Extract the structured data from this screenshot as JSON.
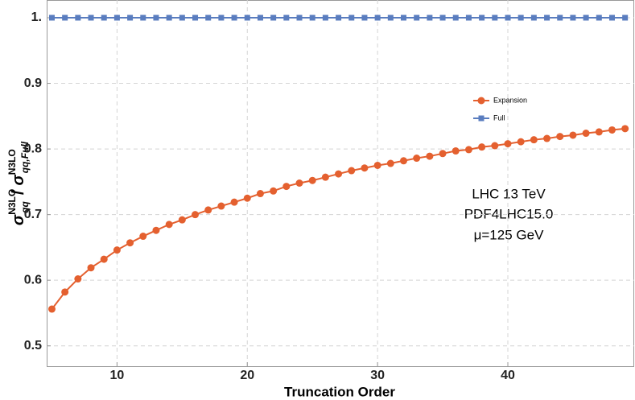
{
  "chart_data": {
    "type": "line",
    "xlabel": "Truncation Order",
    "ylabel": {
      "symbol": "σ",
      "num_sup": "N3LO",
      "num_sub": "qq",
      "slash": "/",
      "den_sup": "N3LO",
      "den_sub": "qq,Full"
    },
    "annotation": [
      "LHC 13 TeV",
      "PDF4LHC15.0",
      "μ=125 GeV"
    ],
    "x": [
      5,
      6,
      7,
      8,
      9,
      10,
      11,
      12,
      13,
      14,
      15,
      16,
      17,
      18,
      19,
      20,
      21,
      22,
      23,
      24,
      25,
      26,
      27,
      28,
      29,
      30,
      31,
      32,
      33,
      34,
      35,
      36,
      37,
      38,
      39,
      40,
      41,
      42,
      43,
      44,
      45,
      46,
      47,
      48,
      49
    ],
    "series": [
      {
        "name": "Expansion",
        "color": "#e4602f",
        "marker": "circle",
        "values": [
          0.556,
          0.582,
          0.602,
          0.619,
          0.632,
          0.646,
          0.657,
          0.667,
          0.676,
          0.685,
          0.692,
          0.7,
          0.707,
          0.713,
          0.719,
          0.725,
          0.732,
          0.736,
          0.743,
          0.748,
          0.752,
          0.757,
          0.762,
          0.767,
          0.771,
          0.775,
          0.778,
          0.782,
          0.786,
          0.789,
          0.793,
          0.797,
          0.799,
          0.803,
          0.805,
          0.808,
          0.811,
          0.814,
          0.816,
          0.819,
          0.821,
          0.824,
          0.826,
          0.829,
          0.831
        ]
      },
      {
        "name": "Full",
        "color": "#5a7dbf",
        "marker": "square",
        "values": [
          1,
          1,
          1,
          1,
          1,
          1,
          1,
          1,
          1,
          1,
          1,
          1,
          1,
          1,
          1,
          1,
          1,
          1,
          1,
          1,
          1,
          1,
          1,
          1,
          1,
          1,
          1,
          1,
          1,
          1,
          1,
          1,
          1,
          1,
          1,
          1,
          1,
          1,
          1,
          1,
          1,
          1,
          1,
          1,
          1
        ]
      }
    ],
    "xlim": [
      4.6,
      49.7
    ],
    "ylim": [
      0.469,
      1.027
    ],
    "xticks": [
      10,
      20,
      30,
      40
    ],
    "yticks": [
      0.5,
      0.6,
      0.7,
      0.8,
      0.9,
      {
        "value": 1,
        "label": "1."
      }
    ],
    "grid": true
  }
}
